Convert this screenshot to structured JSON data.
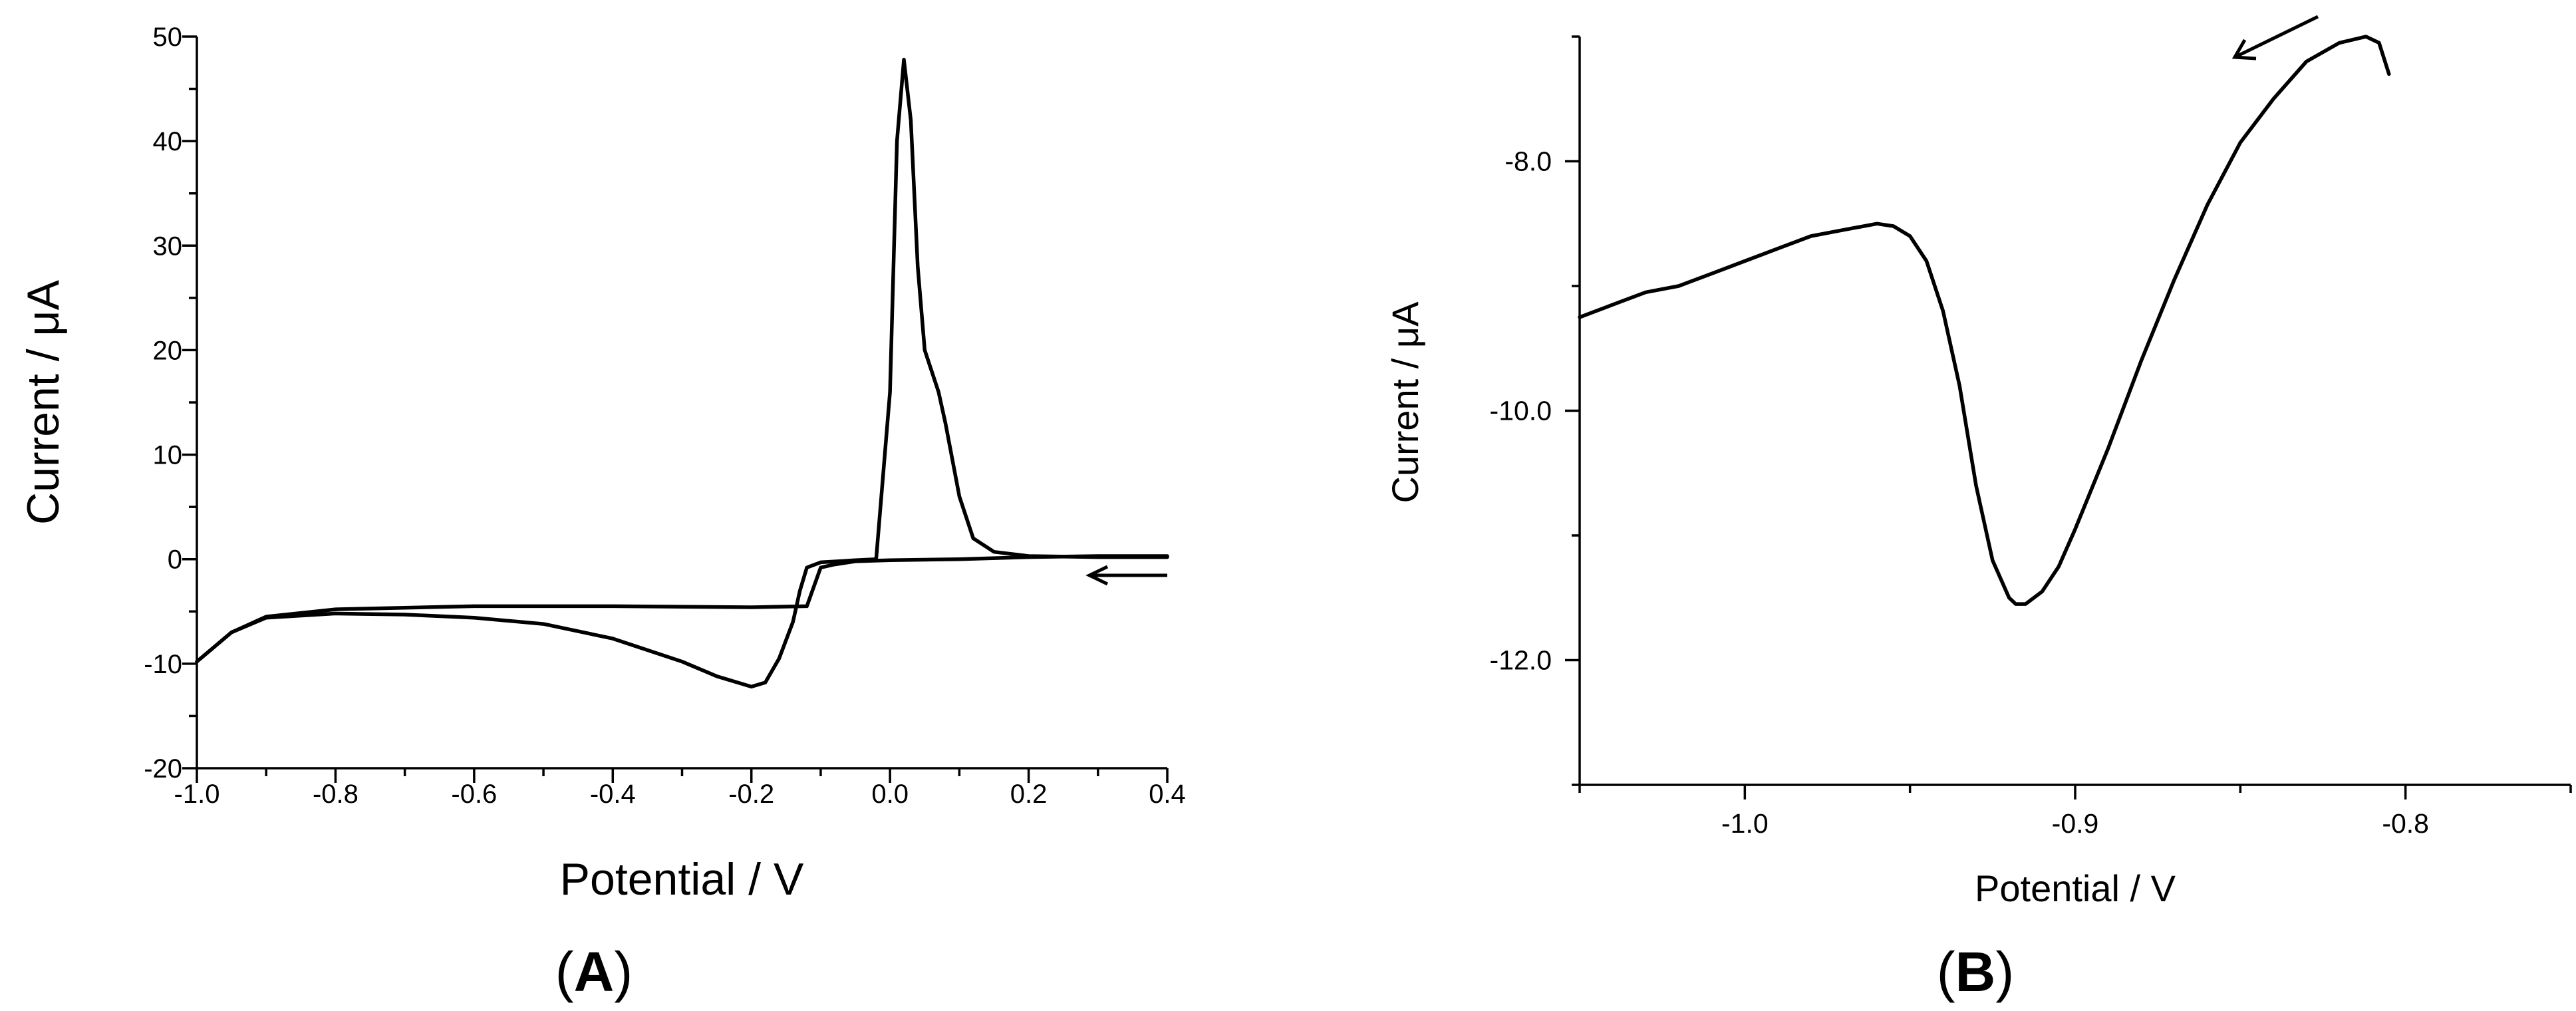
{
  "chart_data": [
    {
      "type": "line",
      "panel_label": "A",
      "xlabel": "Potential / V",
      "ylabel": "Current / μA",
      "xlim": [
        -1.0,
        0.4
      ],
      "ylim": [
        -20,
        50
      ],
      "x_ticks": [
        -1.0,
        -0.8,
        -0.6,
        -0.4,
        -0.2,
        0.0,
        0.2,
        0.4
      ],
      "x_tick_labels": [
        "-1.0",
        "-0.8",
        "-0.6",
        "-0.4",
        "-0.2",
        "0.0",
        "0.2",
        "0.4"
      ],
      "y_ticks": [
        -20,
        -10,
        0,
        10,
        20,
        30,
        40,
        50
      ],
      "y_tick_labels": [
        "-20",
        "-10",
        "0",
        "10",
        "20",
        "30",
        "40",
        "50"
      ],
      "grid": false,
      "annotations": [
        {
          "type": "arrow",
          "direction": "left",
          "at": [
            0.35,
            -1.3
          ]
        }
      ],
      "series": [
        {
          "x": [
            0.4,
            0.3,
            0.2,
            0.1,
            0.0,
            -0.05,
            -0.08,
            -0.1,
            -0.12,
            -0.2,
            -0.4,
            -0.6,
            -0.8,
            -0.9,
            -0.95,
            -1.0
          ],
          "y": [
            0.3,
            0.3,
            0.2,
            0.0,
            -0.1,
            -0.2,
            -0.5,
            -0.8,
            -4.5,
            -4.6,
            -4.5,
            -4.5,
            -4.8,
            -5.5,
            -7.0,
            -9.8
          ]
        },
        {
          "x": [
            -1.0,
            -0.95,
            -0.9,
            -0.8,
            -0.7,
            -0.6,
            -0.5,
            -0.4,
            -0.3,
            -0.25,
            -0.2,
            -0.18,
            -0.16,
            -0.14,
            -0.13,
            -0.12,
            -0.1,
            -0.05,
            -0.02,
            0.0,
            0.01,
            0.02,
            0.03,
            0.04,
            0.05,
            0.07,
            0.08,
            0.1,
            0.12,
            0.15,
            0.2,
            0.3,
            0.4
          ],
          "y": [
            -9.8,
            -7.0,
            -5.6,
            -5.2,
            -5.3,
            -5.6,
            -6.2,
            -7.6,
            -9.8,
            -11.2,
            -12.2,
            -11.8,
            -9.5,
            -6.0,
            -3.0,
            -0.8,
            -0.3,
            -0.1,
            0.0,
            16.0,
            40.0,
            47.8,
            42.0,
            28.0,
            20.0,
            16.0,
            13.0,
            6.0,
            2.0,
            0.7,
            0.3,
            0.2,
            0.2
          ]
        }
      ]
    },
    {
      "type": "line",
      "panel_label": "B",
      "xlabel": "Potential / V",
      "ylabel": "Current / μA",
      "xlim": [
        -1.05,
        -0.75
      ],
      "ylim": [
        -13,
        -7
      ],
      "x_ticks": [
        -1.0,
        -0.9,
        -0.8
      ],
      "x_tick_labels": [
        "-1.0",
        "-0.9",
        "-0.8"
      ],
      "y_ticks": [
        -8.0,
        -10.0,
        -12.0
      ],
      "y_tick_labels": [
        "-8.0",
        "-10.0",
        "-12.0"
      ],
      "grid": false,
      "annotations": [
        {
          "type": "arrow",
          "direction": "down-left",
          "at": [
            -0.82,
            -7.0
          ]
        }
      ],
      "series": [
        {
          "x": [
            -0.805,
            -0.808,
            -0.812,
            -0.82,
            -0.83,
            -0.84,
            -0.85,
            -0.86,
            -0.87,
            -0.88,
            -0.89,
            -0.9,
            -0.905,
            -0.91,
            -0.915,
            -0.918,
            -0.92,
            -0.925,
            -0.93,
            -0.935,
            -0.94,
            -0.945,
            -0.95,
            -0.955,
            -0.96,
            -0.97,
            -0.98,
            -0.99,
            -1.0,
            -1.01,
            -1.02,
            -1.03,
            -1.04,
            -1.05
          ],
          "y": [
            -7.3,
            -7.05,
            -7.0,
            -7.05,
            -7.2,
            -7.5,
            -7.85,
            -8.35,
            -8.95,
            -9.6,
            -10.3,
            -10.95,
            -11.25,
            -11.45,
            -11.55,
            -11.55,
            -11.5,
            -11.2,
            -10.6,
            -9.8,
            -9.2,
            -8.8,
            -8.6,
            -8.52,
            -8.5,
            -8.55,
            -8.6,
            -8.7,
            -8.8,
            -8.9,
            -9.0,
            -9.05,
            -9.15,
            -9.25
          ]
        }
      ]
    }
  ]
}
